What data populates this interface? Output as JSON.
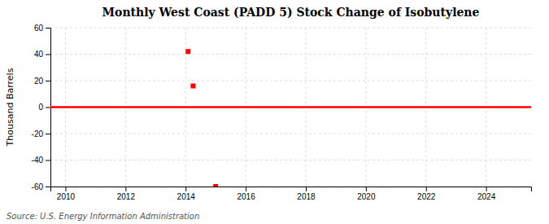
{
  "chart_data": {
    "type": "line",
    "title": "Monthly West Coast (PADD 5) Stock Change of Isobutylene",
    "y_label": "Thousand Barrels",
    "source": "Source: U.S. Energy Information Administration",
    "series": [
      {
        "type": "line",
        "color": "#FF0000",
        "line_style": "solid",
        "x": [
          2009.5,
          2025.5
        ],
        "values": [
          0,
          0
        ]
      },
      {
        "type": "scatter",
        "color": "#FF0000",
        "marker": "square",
        "x": [
          2014.083,
          2014.25,
          2015.0
        ],
        "values": [
          42,
          16,
          -60
        ]
      }
    ],
    "xlim": [
      2009.5,
      2025.5
    ],
    "ylim": [
      -60,
      60
    ],
    "xticks": [
      2010,
      2012,
      2014,
      2016,
      2018,
      2020,
      2022,
      2024
    ],
    "yticks": [
      -60,
      -40,
      -20,
      0,
      20,
      40,
      60
    ],
    "grid": true
  }
}
